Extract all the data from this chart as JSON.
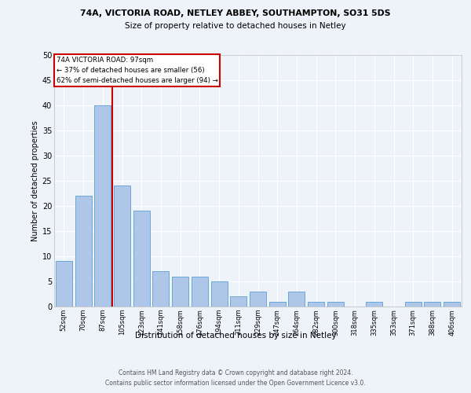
{
  "title1": "74A, VICTORIA ROAD, NETLEY ABBEY, SOUTHAMPTON, SO31 5DS",
  "title2": "Size of property relative to detached houses in Netley",
  "xlabel": "Distribution of detached houses by size in Netley",
  "ylabel": "Number of detached properties",
  "footer1": "Contains HM Land Registry data © Crown copyright and database right 2024.",
  "footer2": "Contains public sector information licensed under the Open Government Licence v3.0.",
  "annotation_line1": "74A VICTORIA ROAD: 97sqm",
  "annotation_line2": "← 37% of detached houses are smaller (56)",
  "annotation_line3": "62% of semi-detached houses are larger (94) →",
  "bar_labels": [
    "52sqm",
    "70sqm",
    "87sqm",
    "105sqm",
    "123sqm",
    "141sqm",
    "158sqm",
    "176sqm",
    "194sqm",
    "211sqm",
    "229sqm",
    "247sqm",
    "264sqm",
    "282sqm",
    "300sqm",
    "318sqm",
    "335sqm",
    "353sqm",
    "371sqm",
    "388sqm",
    "406sqm"
  ],
  "bar_heights": [
    9,
    22,
    40,
    24,
    19,
    7,
    6,
    6,
    5,
    2,
    3,
    1,
    3,
    1,
    1,
    0,
    1,
    0,
    1,
    1,
    1
  ],
  "bar_color": "#aec6e8",
  "bar_edge_color": "#5a9fd4",
  "vline_color": "#cc0000",
  "vline_x_idx": 2,
  "annotation_box_color": "#cc0000",
  "background_color": "#eef2f9",
  "grid_color": "#ffffff",
  "ylim": [
    0,
    50
  ],
  "yticks": [
    0,
    5,
    10,
    15,
    20,
    25,
    30,
    35,
    40,
    45,
    50
  ]
}
